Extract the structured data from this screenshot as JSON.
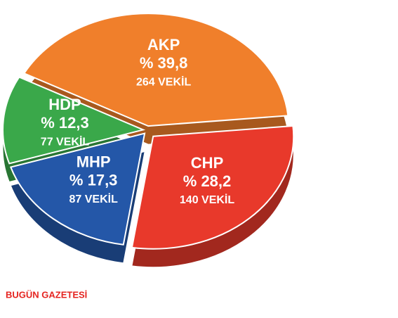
{
  "chart_data": {
    "type": "pie",
    "categories": [
      "AKP",
      "CHP",
      "MHP",
      "HDP"
    ],
    "values": [
      39.8,
      28.2,
      17.3,
      12.3
    ],
    "value_labels": [
      "% 39,8",
      "% 28,2",
      "% 17,3",
      "% 12,3"
    ],
    "seat_labels": [
      "264 VEKİL",
      "140 VEKİL",
      "87 VEKİL",
      "77 VEKİL"
    ],
    "colors": [
      "#f07f2b",
      "#e8392b",
      "#2457a8",
      "#3aa84a"
    ],
    "source": "BUGÜN GAZETESİ"
  }
}
